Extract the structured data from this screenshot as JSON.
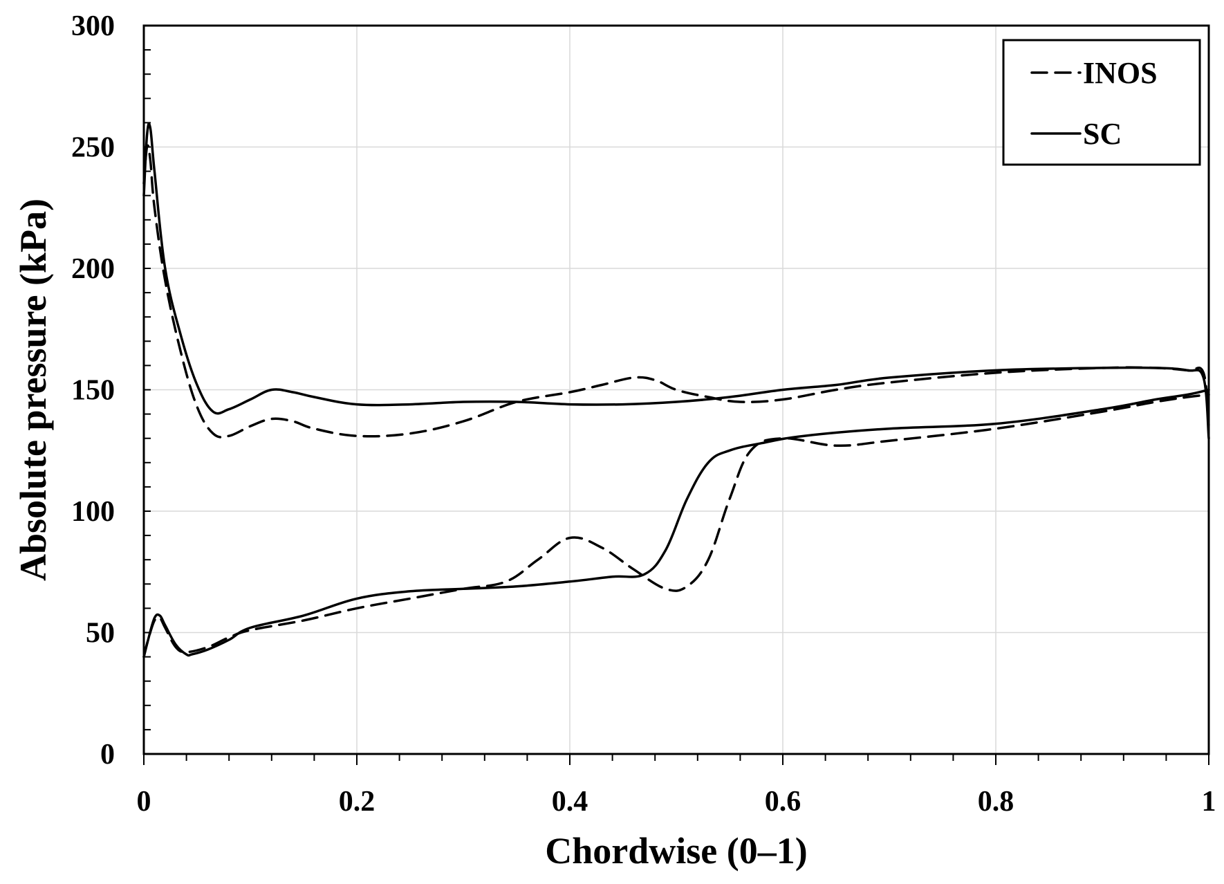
{
  "chart_data": {
    "type": "line",
    "title": "",
    "xlabel": "Chordwise (0–1)",
    "ylabel": "Absolute pressure (kPa)",
    "xlim": [
      0,
      1
    ],
    "ylim": [
      0,
      300
    ],
    "xticks": [
      0,
      0.2,
      0.4,
      0.6,
      0.8,
      1
    ],
    "xtick_labels": [
      "0",
      "0.2",
      "0.4",
      "0.6",
      "0.8",
      "1"
    ],
    "yticks": [
      0,
      50,
      100,
      150,
      200,
      250,
      300
    ],
    "ytick_labels": [
      "0",
      "50",
      "100",
      "150",
      "200",
      "250",
      "300"
    ],
    "grid": true,
    "legend_position": "top-right",
    "legend": [
      {
        "label": "INOS",
        "style": "dashed"
      },
      {
        "label": "SC",
        "style": "solid"
      }
    ],
    "series": [
      {
        "name": "INOS",
        "style": "dashed",
        "color": "#000000",
        "upper_surface": {
          "x": [
            0,
            0.003,
            0.006,
            0.01,
            0.02,
            0.035,
            0.05,
            0.065,
            0.08,
            0.1,
            0.12,
            0.14,
            0.16,
            0.2,
            0.25,
            0.3,
            0.35,
            0.4,
            0.43,
            0.46,
            0.48,
            0.5,
            0.53,
            0.56,
            0.6,
            0.65,
            0.7,
            0.8,
            0.9,
            0.95,
            0.98,
            0.995,
            1.0
          ],
          "y": [
            235,
            250,
            245,
            225,
            195,
            165,
            143,
            132,
            131,
            135,
            138,
            137,
            134,
            131,
            132,
            137,
            145,
            149,
            152,
            155,
            154,
            150,
            147,
            145,
            146,
            150,
            153,
            157,
            159,
            159,
            158,
            157,
            135
          ]
        },
        "lower_surface": {
          "x": [
            0,
            0.004,
            0.01,
            0.015,
            0.02,
            0.03,
            0.04,
            0.06,
            0.08,
            0.1,
            0.15,
            0.2,
            0.25,
            0.3,
            0.34,
            0.37,
            0.4,
            0.43,
            0.46,
            0.49,
            0.51,
            0.53,
            0.55,
            0.57,
            0.6,
            0.65,
            0.7,
            0.8,
            0.9,
            0.95,
            0.98,
            1.0
          ],
          "y": [
            40,
            47,
            55,
            56,
            52,
            44,
            42,
            44,
            48,
            51,
            55,
            60,
            64,
            68,
            71,
            80,
            89,
            85,
            76,
            68,
            69,
            80,
            105,
            125,
            130,
            127,
            129,
            134,
            141,
            145,
            147,
            148
          ]
        }
      },
      {
        "name": "SC",
        "style": "solid",
        "color": "#000000",
        "upper_surface": {
          "x": [
            0,
            0.003,
            0.006,
            0.01,
            0.02,
            0.035,
            0.05,
            0.065,
            0.08,
            0.1,
            0.12,
            0.14,
            0.16,
            0.2,
            0.25,
            0.3,
            0.35,
            0.4,
            0.45,
            0.5,
            0.55,
            0.6,
            0.65,
            0.7,
            0.8,
            0.9,
            0.95,
            0.98,
            0.995,
            1.0
          ],
          "y": [
            230,
            255,
            258,
            240,
            200,
            172,
            152,
            141,
            142,
            146,
            150,
            149,
            147,
            144,
            144,
            145,
            145,
            144,
            144,
            145,
            147,
            150,
            152,
            155,
            158,
            159,
            159,
            158,
            155,
            130
          ]
        },
        "lower_surface": {
          "x": [
            0,
            0.004,
            0.01,
            0.015,
            0.02,
            0.03,
            0.04,
            0.045,
            0.06,
            0.08,
            0.1,
            0.15,
            0.2,
            0.25,
            0.3,
            0.35,
            0.4,
            0.44,
            0.47,
            0.49,
            0.51,
            0.53,
            0.55,
            0.58,
            0.62,
            0.7,
            0.8,
            0.9,
            0.95,
            0.98,
            1.0
          ],
          "y": [
            40,
            47,
            56,
            57,
            53,
            45,
            41,
            41,
            43,
            47,
            52,
            57,
            64,
            67,
            68,
            69,
            71,
            73,
            74,
            84,
            105,
            120,
            125,
            128,
            131,
            134,
            136,
            142,
            146,
            148,
            150
          ]
        }
      }
    ]
  }
}
